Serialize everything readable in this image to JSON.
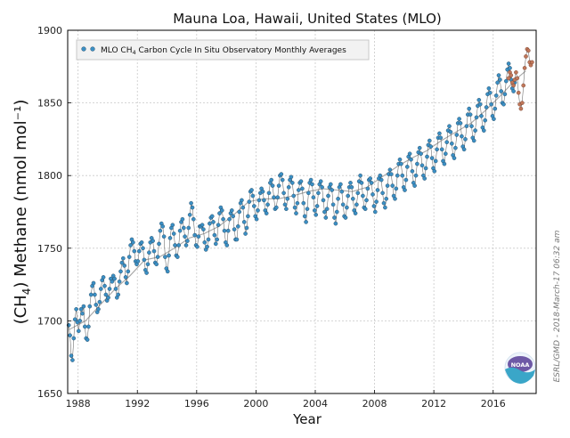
{
  "chart_data": {
    "type": "scatter",
    "title": "Mauna Loa, Hawaii, United States (MLO)",
    "xlabel": "Year",
    "ylabel_prefix": "(CH",
    "ylabel_sub": "4",
    "ylabel_suffix": ") Methane (nmol mol⁻¹)",
    "xlim": [
      1987.3,
      2018.9
    ],
    "ylim": [
      1650,
      1900
    ],
    "xticks": [
      1988,
      1992,
      1996,
      2000,
      2004,
      2008,
      2012,
      2016
    ],
    "yticks": [
      1650,
      1700,
      1750,
      1800,
      1850,
      1900
    ],
    "grid": true,
    "legend": {
      "position": "top-left",
      "label_prefix": "MLO CH",
      "label_sub": "4",
      "label_suffix": " Carbon Cycle In Situ Observatory Monthly Averages"
    },
    "credit": "ESRL/GMD - 2018-March-17 06:32 am",
    "logo_text": "NOAA",
    "colors": {
      "monthly": "#3b8fc4",
      "monthly_edge": "#1f3f55",
      "preliminary": "#c0775a",
      "trend": "#a6a6a6",
      "grid": "#c9c9c9",
      "connector": "#555555"
    },
    "series": [
      {
        "name": "Monthly averages",
        "role": "monthly",
        "x_start": 1987.375,
        "x_step": 0.0833333,
        "values": [
          1697,
          1690,
          1676,
          1673,
          1688,
          1701,
          1708,
          1699,
          1693,
          1700,
          1708,
          1705,
          1710,
          1696,
          1688,
          1687,
          1696,
          1710,
          1718,
          1724,
          1726,
          1718,
          1711,
          1706,
          1708,
          1713,
          1722,
          1728,
          1730,
          1724,
          1718,
          1714,
          1716,
          1722,
          1729,
          1727,
          1731,
          1729,
          1722,
          1716,
          1718,
          1727,
          1734,
          1740,
          1743,
          1738,
          1730,
          1726,
          1734,
          1744,
          1752,
          1756,
          1754,
          1748,
          1741,
          1739,
          1741,
          1748,
          1753,
          1754,
          1750,
          1742,
          1735,
          1733,
          1739,
          1747,
          1754,
          1757,
          1755,
          1748,
          1740,
          1739,
          1744,
          1753,
          1762,
          1767,
          1765,
          1758,
          1744,
          1736,
          1734,
          1745,
          1757,
          1764,
          1766,
          1760,
          1752,
          1745,
          1744,
          1752,
          1762,
          1768,
          1770,
          1764,
          1758,
          1752,
          1755,
          1764,
          1773,
          1781,
          1778,
          1770,
          1759,
          1752,
          1751,
          1758,
          1765,
          1765,
          1766,
          1763,
          1754,
          1749,
          1751,
          1756,
          1767,
          1771,
          1772,
          1768,
          1759,
          1753,
          1756,
          1766,
          1774,
          1778,
          1776,
          1770,
          1762,
          1754,
          1752,
          1762,
          1770,
          1774,
          1776,
          1772,
          1763,
          1756,
          1756,
          1765,
          1775,
          1781,
          1783,
          1778,
          1768,
          1760,
          1764,
          1772,
          1782,
          1789,
          1790,
          1786,
          1779,
          1772,
          1770,
          1776,
          1783,
          1788,
          1791,
          1789,
          1783,
          1776,
          1774,
          1780,
          1788,
          1795,
          1797,
          1793,
          1785,
          1777,
          1778,
          1785,
          1793,
          1800,
          1801,
          1797,
          1788,
          1780,
          1777,
          1784,
          1792,
          1797,
          1799,
          1795,
          1786,
          1778,
          1774,
          1781,
          1790,
          1795,
          1796,
          1791,
          1781,
          1772,
          1768,
          1777,
          1788,
          1795,
          1797,
          1794,
          1785,
          1776,
          1773,
          1779,
          1788,
          1794,
          1796,
          1792,
          1783,
          1775,
          1771,
          1777,
          1786,
          1792,
          1794,
          1790,
          1780,
          1771,
          1767,
          1775,
          1784,
          1792,
          1794,
          1789,
          1780,
          1772,
          1771,
          1778,
          1786,
          1792,
          1795,
          1792,
          1784,
          1776,
          1774,
          1780,
          1788,
          1796,
          1800,
          1795,
          1786,
          1778,
          1777,
          1783,
          1791,
          1797,
          1798,
          1795,
          1787,
          1779,
          1775,
          1782,
          1790,
          1798,
          1800,
          1797,
          1788,
          1781,
          1778,
          1784,
          1793,
          1801,
          1804,
          1801,
          1793,
          1786,
          1784,
          1791,
          1800,
          1808,
          1811,
          1808,
          1800,
          1792,
          1790,
          1797,
          1806,
          1813,
          1815,
          1811,
          1803,
          1795,
          1793,
          1800,
          1808,
          1816,
          1819,
          1815,
          1807,
          1800,
          1798,
          1805,
          1813,
          1821,
          1824,
          1820,
          1812,
          1805,
          1803,
          1810,
          1818,
          1826,
          1829,
          1826,
          1818,
          1810,
          1808,
          1815,
          1823,
          1831,
          1834,
          1830,
          1822,
          1814,
          1812,
          1819,
          1828,
          1836,
          1839,
          1836,
          1827,
          1820,
          1818,
          1825,
          1834,
          1842,
          1846,
          1842,
          1834,
          1826,
          1824,
          1831,
          1840,
          1848,
          1852,
          1849,
          1841,
          1833,
          1831,
          1838,
          1847,
          1856,
          1860,
          1857,
          1849,
          1841,
          1839,
          1846,
          1855,
          1864,
          1869,
          1866,
          1858,
          1850,
          1849,
          1856,
          1865,
          1873,
          1877,
          1874,
          1866,
          1860,
          1858,
          1864
        ]
      },
      {
        "name": "Preliminary monthly averages",
        "role": "preliminary",
        "x_start": 2017.042,
        "x_step": 0.0833333,
        "values": [
          1867,
          1871,
          1869,
          1864,
          1862,
          1866,
          1871,
          1867,
          1857,
          1849,
          1846,
          1850,
          1862,
          1874,
          1882,
          1887,
          1886,
          1878,
          1876,
          1878
        ]
      },
      {
        "name": "Trend",
        "role": "trend",
        "x": [
          1987.4,
          1988.5,
          1989.5,
          1990.5,
          1991.5,
          1992.5,
          1993.5,
          1994.5,
          1995.5,
          1996.5,
          1997.5,
          1998.5,
          1999.5,
          2000.5,
          2001.5,
          2002.5,
          2003.5,
          2004.5,
          2005.5,
          2006.5,
          2007.5,
          2008.5,
          2009.5,
          2010.5,
          2011.5,
          2012.5,
          2013.5,
          2014.5,
          2015.5,
          2016.5,
          2017.5,
          2018.2
        ],
        "values": [
          1694,
          1700,
          1711,
          1722,
          1731,
          1742,
          1744,
          1750,
          1757,
          1760,
          1765,
          1773,
          1782,
          1784,
          1784,
          1786,
          1789,
          1791,
          1790,
          1789,
          1792,
          1799,
          1806,
          1812,
          1817,
          1824,
          1830,
          1836,
          1845,
          1855,
          1866,
          1872
        ]
      }
    ]
  }
}
